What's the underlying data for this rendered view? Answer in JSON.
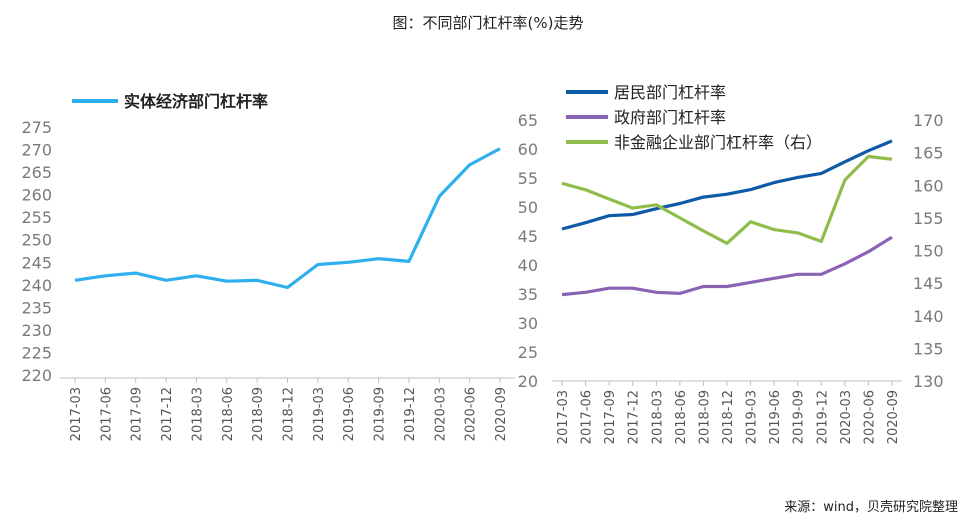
{
  "title": "图：不同部门杠杆率(%)走势",
  "source": "来源：wind，贝壳研究院整理",
  "colors": {
    "real_economy": "#2eb0ee",
    "household": "#0f5aa6",
    "government": "#8a64b4",
    "nonfinancial": "#8fbc4a",
    "axis": "#bfbfbf"
  },
  "chart_data": [
    {
      "type": "line",
      "title": "",
      "categories": [
        "2017-03",
        "2017-06",
        "2017-09",
        "2017-12",
        "2018-03",
        "2018-06",
        "2018-09",
        "2018-12",
        "2019-03",
        "2019-06",
        "2019-09",
        "2019-12",
        "2020-03",
        "2020-06",
        "2020-09"
      ],
      "ylim": [
        220,
        275
      ],
      "yticks": [
        220,
        225,
        230,
        235,
        240,
        245,
        250,
        255,
        260,
        265,
        270,
        275
      ],
      "legend_placement": "top-left",
      "series": [
        {
          "name": "实体经济部门杠杆率",
          "axis": "left",
          "values": [
            241.0,
            242.0,
            242.6,
            241.0,
            242.0,
            240.8,
            241.0,
            239.4,
            244.5,
            245.0,
            245.8,
            245.2,
            259.6,
            266.6,
            270.2
          ]
        }
      ]
    },
    {
      "type": "line",
      "title": "",
      "categories": [
        "2017-03",
        "2017-06",
        "2017-09",
        "2017-12",
        "2018-03",
        "2018-06",
        "2018-09",
        "2018-12",
        "2019-03",
        "2019-06",
        "2019-09",
        "2019-12",
        "2020-03",
        "2020-06",
        "2020-09"
      ],
      "ylim_left": [
        20,
        65
      ],
      "yticks_left": [
        20,
        25,
        30,
        35,
        40,
        45,
        50,
        55,
        60,
        65
      ],
      "ylim_right": [
        130,
        170
      ],
      "yticks_right": [
        130,
        135,
        140,
        145,
        150,
        155,
        160,
        165,
        170
      ],
      "legend_placement": "top-left",
      "series": [
        {
          "name": "居民部门杠杆率",
          "axis": "left",
          "values": [
            46.2,
            47.3,
            48.5,
            48.7,
            49.7,
            50.6,
            51.7,
            52.2,
            53.0,
            54.2,
            55.1,
            55.8,
            57.8,
            59.7,
            61.4
          ]
        },
        {
          "name": "政府部门杠杆率",
          "axis": "left",
          "values": [
            34.9,
            35.3,
            36.0,
            36.0,
            35.3,
            35.1,
            36.3,
            36.3,
            37.0,
            37.7,
            38.4,
            38.4,
            40.2,
            42.3,
            44.8
          ]
        },
        {
          "name": "非金融企业部门杠杆率（右）",
          "axis": "right",
          "values": [
            160.3,
            159.3,
            157.9,
            156.5,
            157.0,
            155.0,
            153.0,
            151.1,
            154.4,
            153.2,
            152.7,
            151.4,
            160.8,
            164.4,
            164.0
          ]
        }
      ]
    }
  ]
}
